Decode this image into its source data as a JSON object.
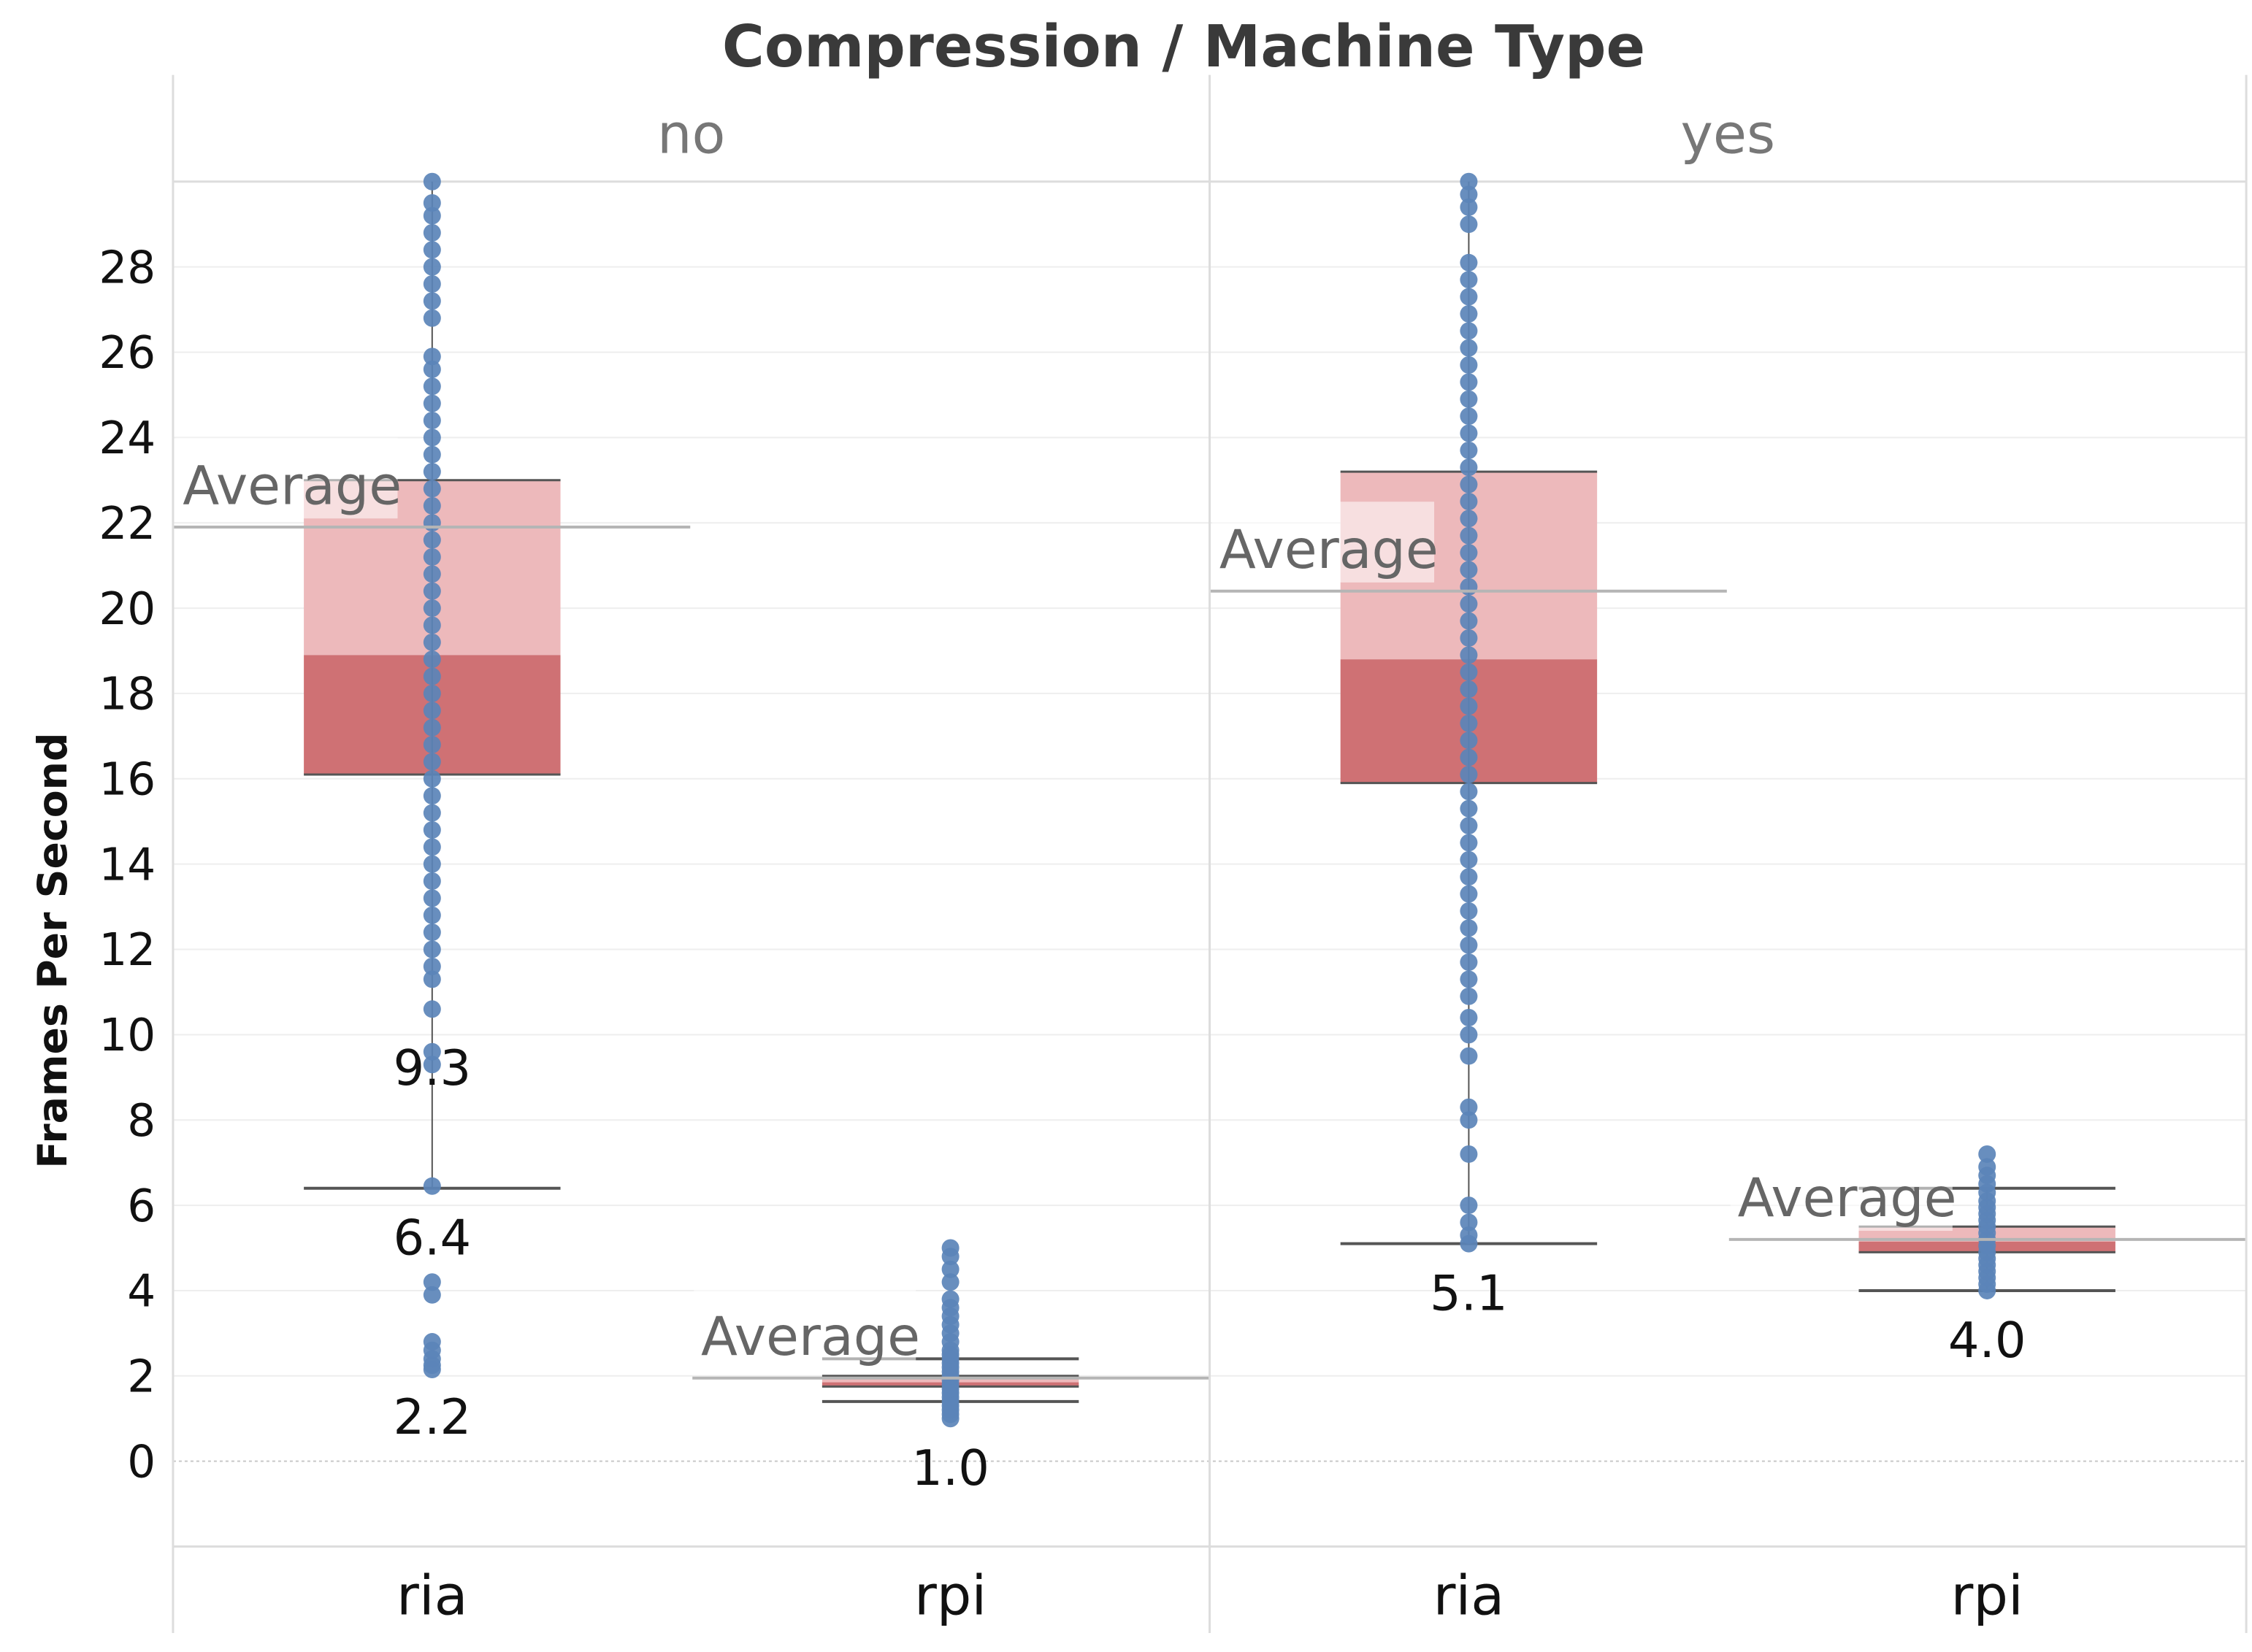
{
  "chart_data": {
    "type": "box",
    "title": "Compression  /  Machine Type",
    "ylabel": "Frames Per Second",
    "xlabel": "",
    "ylim": [
      -2,
      30
    ],
    "yticks": [
      0,
      2,
      4,
      6,
      8,
      10,
      12,
      14,
      16,
      18,
      20,
      22,
      24,
      26,
      28
    ],
    "grid": true,
    "average_label": "Average",
    "colors": {
      "point": "#5b84b8",
      "box_upper": "#edb9bb",
      "box_lower": "#cf7174",
      "whisker": "#555555",
      "average_line": "#b5b5b5",
      "grid": "#eeeeee",
      "zero_line": "#c8c8c8"
    },
    "panels": [
      {
        "label": "no",
        "groups": [
          {
            "category": "ria",
            "whisker_low": 6.4,
            "q1": 16.1,
            "median": 18.9,
            "q3": 23.0,
            "whisker_high": 30.0,
            "average": 21.9,
            "value_labels": [
              "9.3",
              "6.4",
              "2.2"
            ],
            "value_label_positions": [
              9.3,
              6.4,
              2.2
            ],
            "points": [
              2.15,
              2.25,
              2.4,
              2.6,
              2.8,
              3.9,
              4.2,
              6.45,
              9.3,
              9.6,
              10.6,
              11.3,
              11.6,
              12.0,
              12.4,
              12.8,
              13.2,
              13.6,
              14.0,
              14.4,
              14.8,
              15.2,
              15.6,
              16.0,
              16.4,
              16.8,
              17.2,
              17.6,
              18.0,
              18.4,
              18.8,
              19.2,
              19.6,
              20.0,
              20.4,
              20.8,
              21.2,
              21.6,
              22.0,
              22.4,
              22.8,
              23.2,
              23.6,
              24.0,
              24.4,
              24.8,
              25.2,
              25.6,
              25.9,
              26.8,
              27.2,
              27.6,
              28.0,
              28.4,
              28.8,
              29.2,
              29.5,
              30.0
            ]
          },
          {
            "category": "rpi",
            "whisker_low": 1.4,
            "q1": 1.75,
            "median": 1.85,
            "q3": 2.0,
            "whisker_high": 2.4,
            "average": 1.95,
            "value_labels": [
              "1.0"
            ],
            "value_label_positions": [
              1.0
            ],
            "points": [
              1.0,
              1.1,
              1.2,
              1.3,
              1.4,
              1.5,
              1.6,
              1.7,
              1.8,
              1.9,
              2.0,
              2.1,
              2.2,
              2.3,
              2.4,
              2.5,
              2.6,
              2.8,
              3.0,
              3.2,
              3.4,
              3.6,
              3.8,
              4.2,
              4.5,
              4.8,
              5.0
            ]
          }
        ]
      },
      {
        "label": "yes",
        "groups": [
          {
            "category": "ria",
            "whisker_low": 5.1,
            "q1": 15.9,
            "median": 18.8,
            "q3": 23.2,
            "whisker_high": 30.0,
            "average": 20.4,
            "value_labels": [
              "5.1"
            ],
            "value_label_positions": [
              5.1
            ],
            "points": [
              5.1,
              5.3,
              5.6,
              6.0,
              7.2,
              8.0,
              8.3,
              9.5,
              10.0,
              10.4,
              10.9,
              11.3,
              11.7,
              12.1,
              12.5,
              12.9,
              13.3,
              13.7,
              14.1,
              14.5,
              14.9,
              15.3,
              15.7,
              16.1,
              16.5,
              16.9,
              17.3,
              17.7,
              18.1,
              18.5,
              18.9,
              19.3,
              19.7,
              20.1,
              20.5,
              20.9,
              21.3,
              21.7,
              22.1,
              22.5,
              22.9,
              23.3,
              23.7,
              24.1,
              24.5,
              24.9,
              25.3,
              25.7,
              26.1,
              26.5,
              26.9,
              27.3,
              27.7,
              28.1,
              29.0,
              29.4,
              29.7,
              30.0
            ]
          },
          {
            "category": "rpi",
            "whisker_low": 4.0,
            "q1": 4.9,
            "median": 5.15,
            "q3": 5.5,
            "whisker_high": 6.4,
            "average": 5.2,
            "value_labels": [
              "4.0"
            ],
            "value_label_positions": [
              4.0
            ],
            "points": [
              4.0,
              4.15,
              4.3,
              4.45,
              4.6,
              4.75,
              4.9,
              5.05,
              5.2,
              5.35,
              5.5,
              5.65,
              5.8,
              5.95,
              6.1,
              6.3,
              6.5,
              6.7,
              6.9,
              7.2
            ]
          }
        ]
      }
    ]
  }
}
